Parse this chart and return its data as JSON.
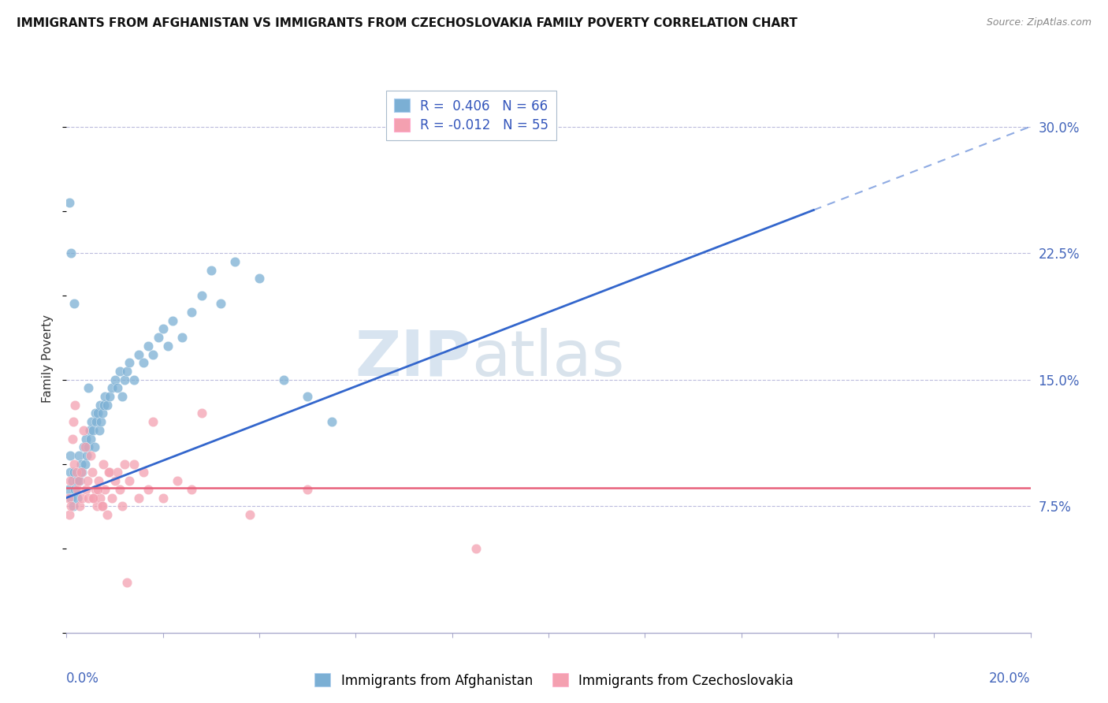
{
  "title": "IMMIGRANTS FROM AFGHANISTAN VS IMMIGRANTS FROM CZECHOSLOVAKIA FAMILY POVERTY CORRELATION CHART",
  "source": "Source: ZipAtlas.com",
  "ylabel": "Family Poverty",
  "right_yticks": [
    7.5,
    15.0,
    22.5,
    30.0
  ],
  "right_ytick_labels": [
    "7.5%",
    "15.0%",
    "22.5%",
    "30.0%"
  ],
  "xlim": [
    0.0,
    20.0
  ],
  "ylim": [
    0.0,
    32.5
  ],
  "R_afghanistan": 0.406,
  "N_afghanistan": 66,
  "R_czechoslovakia": -0.012,
  "N_czechoslovakia": 55,
  "color_afghanistan": "#7BAFD4",
  "color_czechoslovakia": "#F4A0B0",
  "color_trend_afghanistan": "#3366CC",
  "color_trend_czechoslovakia": "#E8607A",
  "legend_label_afghanistan": "Immigrants from Afghanistan",
  "legend_label_czechoslovakia": "Immigrants from Czechoslovakia",
  "trend_af_x0": 0.0,
  "trend_af_y0": 8.0,
  "trend_af_x1": 20.0,
  "trend_af_y1": 30.0,
  "trend_cz_y": 8.6,
  "trend_solid_end": 15.5,
  "afghanistan_x": [
    0.05,
    0.07,
    0.08,
    0.1,
    0.12,
    0.14,
    0.15,
    0.18,
    0.2,
    0.22,
    0.25,
    0.28,
    0.3,
    0.32,
    0.35,
    0.38,
    0.4,
    0.42,
    0.45,
    0.48,
    0.5,
    0.52,
    0.55,
    0.58,
    0.6,
    0.62,
    0.65,
    0.68,
    0.7,
    0.72,
    0.75,
    0.78,
    0.8,
    0.85,
    0.9,
    0.95,
    1.0,
    1.05,
    1.1,
    1.15,
    1.2,
    1.25,
    1.3,
    1.4,
    1.5,
    1.6,
    1.7,
    1.8,
    1.9,
    2.0,
    2.1,
    2.2,
    2.4,
    2.6,
    2.8,
    3.0,
    3.2,
    3.5,
    4.0,
    4.5,
    5.0,
    5.5,
    0.06,
    0.09,
    0.16,
    0.45
  ],
  "afghanistan_y": [
    8.5,
    9.5,
    10.5,
    8.0,
    9.0,
    7.5,
    9.5,
    8.5,
    9.0,
    8.0,
    10.5,
    9.0,
    10.0,
    9.5,
    11.0,
    10.0,
    11.5,
    10.5,
    11.0,
    12.0,
    11.5,
    12.5,
    12.0,
    11.0,
    13.0,
    12.5,
    13.0,
    12.0,
    13.5,
    12.5,
    13.0,
    13.5,
    14.0,
    13.5,
    14.0,
    14.5,
    15.0,
    14.5,
    15.5,
    14.0,
    15.0,
    15.5,
    16.0,
    15.0,
    16.5,
    16.0,
    17.0,
    16.5,
    17.5,
    18.0,
    17.0,
    18.5,
    17.5,
    19.0,
    20.0,
    21.5,
    19.5,
    22.0,
    21.0,
    15.0,
    14.0,
    12.5,
    25.5,
    22.5,
    19.5,
    14.5
  ],
  "czechoslovakia_x": [
    0.04,
    0.06,
    0.08,
    0.1,
    0.12,
    0.14,
    0.16,
    0.18,
    0.2,
    0.22,
    0.25,
    0.28,
    0.3,
    0.32,
    0.35,
    0.38,
    0.4,
    0.43,
    0.46,
    0.5,
    0.53,
    0.56,
    0.6,
    0.63,
    0.66,
    0.7,
    0.73,
    0.76,
    0.8,
    0.85,
    0.9,
    0.95,
    1.0,
    1.05,
    1.1,
    1.15,
    1.2,
    1.3,
    1.4,
    1.5,
    1.6,
    1.7,
    1.8,
    2.0,
    2.3,
    2.6,
    2.8,
    5.0,
    8.5,
    3.8,
    0.55,
    0.65,
    0.75,
    0.88,
    1.25
  ],
  "czechoslovakia_y": [
    8.0,
    7.0,
    9.0,
    7.5,
    11.5,
    12.5,
    10.0,
    13.5,
    9.5,
    8.5,
    9.0,
    7.5,
    9.5,
    8.0,
    12.0,
    11.0,
    8.5,
    9.0,
    8.0,
    10.5,
    9.5,
    8.0,
    8.5,
    7.5,
    9.0,
    8.0,
    7.5,
    10.0,
    8.5,
    7.0,
    9.5,
    8.0,
    9.0,
    9.5,
    8.5,
    7.5,
    10.0,
    9.0,
    10.0,
    8.0,
    9.5,
    8.5,
    12.5,
    8.0,
    9.0,
    8.5,
    13.0,
    8.5,
    5.0,
    7.0,
    8.0,
    8.5,
    7.5,
    9.5,
    3.0
  ]
}
